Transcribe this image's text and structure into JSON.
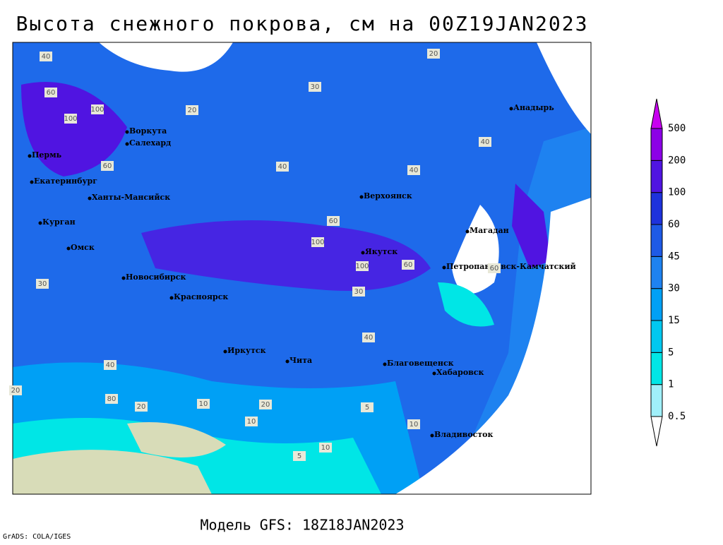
{
  "title": "Высота снежного покрова, см на 00Z19JAN2023",
  "footer": "Модель GFS: 18Z18JAN2023",
  "credit": "GrADS: COLA/IGES",
  "legend": {
    "levels": [
      0.5,
      1,
      5,
      15,
      30,
      45,
      60,
      100,
      200,
      500
    ],
    "colors": [
      "#ffffff",
      "#a0f0fa",
      "#00e6e6",
      "#00c8f0",
      "#00a0f5",
      "#1e82f0",
      "#1e5ae6",
      "#1e32dc",
      "#5014e1",
      "#8c00e6",
      "#c800f0"
    ]
  },
  "cities": [
    "Воркута",
    "Салехард",
    "Пермь",
    "Екатеринбург",
    "Ханты-Мансийск",
    "Курган",
    "Омск",
    "Новосибирск",
    "Красноярск",
    "Верхоянск",
    "Якутск",
    "Магадан",
    "Анадырь",
    "Петропавловск-Камчатский",
    "Иркутск",
    "Чита",
    "Благовещенск",
    "Хабаровск",
    "Владивосток"
  ],
  "contour_labels": [
    40,
    60,
    100,
    100,
    20,
    30,
    20,
    40,
    40,
    40,
    60,
    60,
    100,
    100,
    60,
    40,
    30,
    20,
    10,
    20,
    10,
    5,
    10,
    5,
    30,
    40,
    80,
    60,
    20,
    10
  ]
}
